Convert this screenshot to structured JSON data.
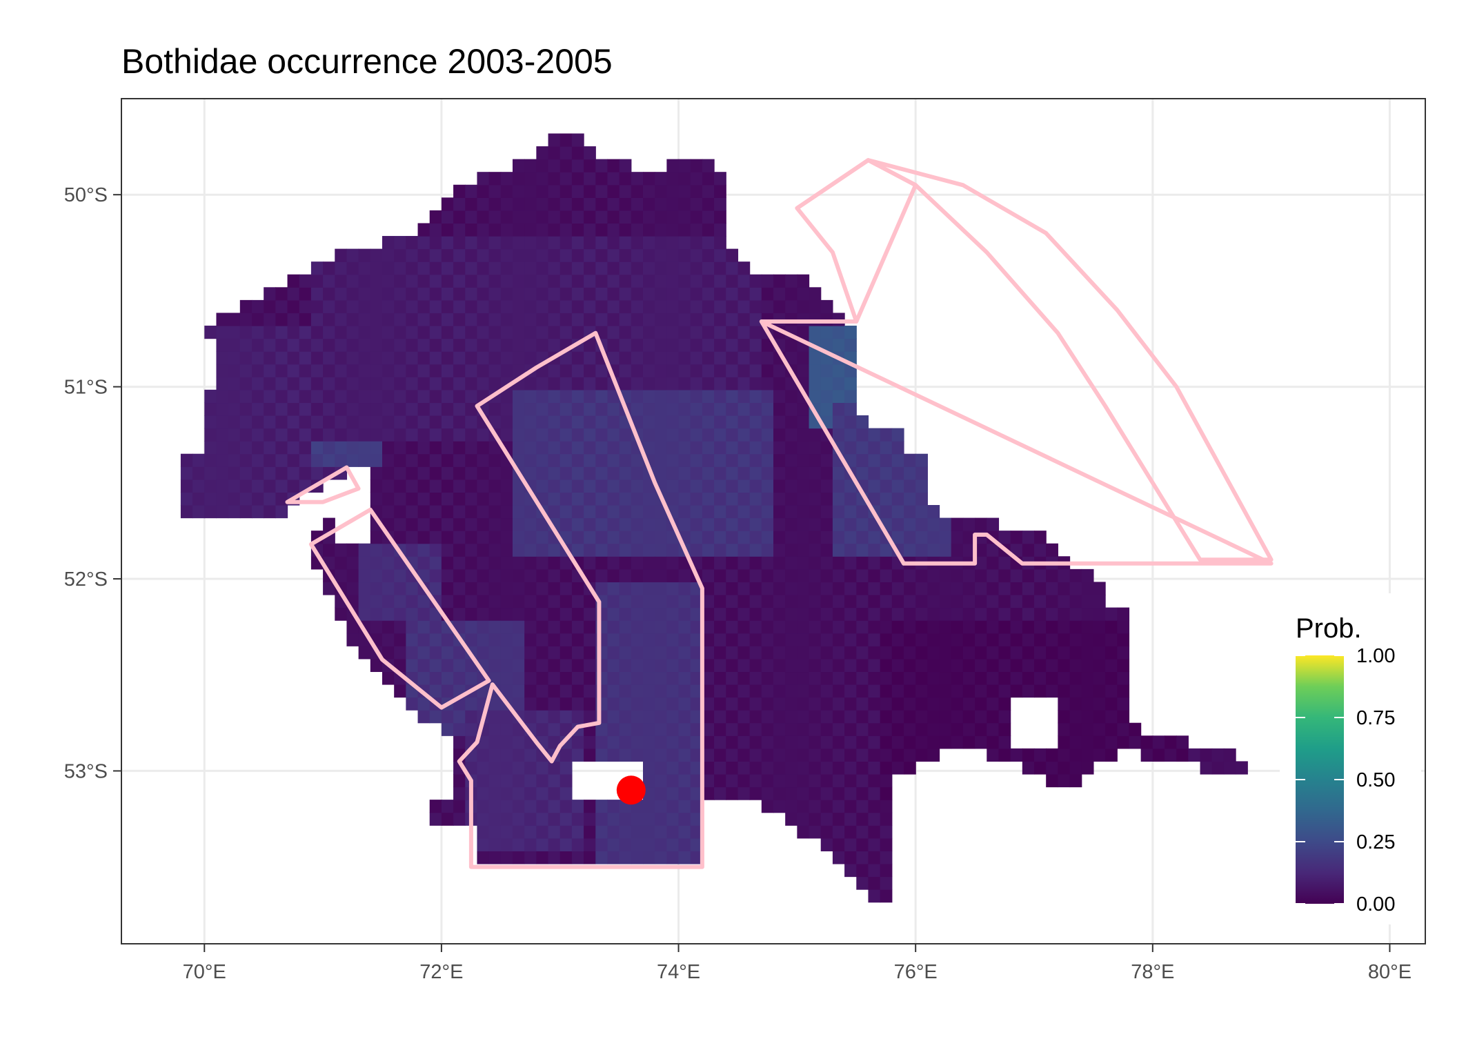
{
  "chart_data": {
    "type": "heatmap",
    "title": "Bothidae  occurrence 2003-2005",
    "xlabel": "",
    "ylabel": "",
    "xlim": [
      69.3,
      80.3
    ],
    "ylim": [
      -53.9,
      -49.5
    ],
    "x_ticks": [
      {
        "value": 70,
        "label": "70°E"
      },
      {
        "value": 72,
        "label": "72°E"
      },
      {
        "value": 74,
        "label": "74°E"
      },
      {
        "value": 76,
        "label": "76°E"
      },
      {
        "value": 78,
        "label": "78°E"
      },
      {
        "value": 80,
        "label": "80°E"
      }
    ],
    "y_ticks": [
      {
        "value": -50,
        "label": "50°S"
      },
      {
        "value": -51,
        "label": "51°S"
      },
      {
        "value": -52,
        "label": "52°S"
      },
      {
        "value": -53,
        "label": "53°S"
      }
    ],
    "grid": true,
    "colorscale": "viridis",
    "fill_range": [
      0,
      1
    ],
    "cell_size_deg": [
      0.1,
      0.0667
    ],
    "probability_regions": [
      {
        "lon": [
          69.8,
          71.4
        ],
        "lat": [
          -51.7,
          -50.7
        ],
        "prob": 0.09
      },
      {
        "lon": [
          70.9,
          71.5
        ],
        "lat": [
          -51.4,
          -51.0
        ],
        "prob": 0.2
      },
      {
        "lon": [
          70.9,
          74.7
        ],
        "lat": [
          -51.3,
          -50.2
        ],
        "prob": 0.08
      },
      {
        "lon": [
          72.9,
          73.3
        ],
        "lat": [
          -51.7,
          -51.3
        ],
        "prob": 0.16
      },
      {
        "lon": [
          72.6,
          74.8
        ],
        "lat": [
          -51.9,
          -51.0
        ],
        "prob": 0.17
      },
      {
        "lon": [
          73.3,
          74.2
        ],
        "lat": [
          -53.6,
          -52.0
        ],
        "prob": 0.16
      },
      {
        "lon": [
          75.1,
          75.6
        ],
        "lat": [
          -51.2,
          -50.7
        ],
        "prob": 0.3
      },
      {
        "lon": [
          75.3,
          76.3
        ],
        "lat": [
          -51.9,
          -51.1
        ],
        "prob": 0.18
      },
      {
        "lon": [
          71.3,
          72.0
        ],
        "lat": [
          -52.2,
          -51.8
        ],
        "prob": 0.14
      },
      {
        "lon": [
          71.7,
          72.7
        ],
        "lat": [
          -52.8,
          -52.2
        ],
        "prob": 0.16
      },
      {
        "lon": [
          72.2,
          73.2
        ],
        "lat": [
          -53.4,
          -52.7
        ],
        "prob": 0.12
      },
      {
        "lon": [
          75.7,
          78.3
        ],
        "lat": [
          -53.2,
          -52.2
        ],
        "prob": 0.01
      }
    ],
    "legend": {
      "title": "Prob.",
      "placement": "right",
      "ticks": [
        {
          "value": 0,
          "label": "0.00"
        },
        {
          "value": 0.25,
          "label": "0.25"
        },
        {
          "value": 0.5,
          "label": "0.50"
        },
        {
          "value": 0.75,
          "label": "0.75"
        },
        {
          "value": 1,
          "label": "1.00"
        }
      ]
    },
    "polygon_color": "#ffc0cb",
    "polygons": [
      {
        "name": "zone-northeast-sector",
        "points": [
          [
            75.0,
            -50.07
          ],
          [
            75.6,
            -49.82
          ],
          [
            76.0,
            -49.95
          ],
          [
            76.6,
            -50.3
          ],
          [
            77.2,
            -50.72
          ],
          [
            77.6,
            -51.1
          ],
          [
            78.0,
            -51.5
          ],
          [
            78.4,
            -51.9
          ],
          [
            79.0,
            -51.9
          ],
          [
            78.6,
            -51.45
          ],
          [
            78.2,
            -51.0
          ],
          [
            77.7,
            -50.6
          ],
          [
            77.1,
            -50.2
          ],
          [
            76.4,
            -49.95
          ],
          [
            75.6,
            -49.82
          ]
        ]
      },
      {
        "name": "zone-east-shelf",
        "points": [
          [
            74.7,
            -50.66
          ],
          [
            75.5,
            -50.66
          ],
          [
            75.3,
            -50.3
          ],
          [
            75.0,
            -50.07
          ],
          [
            75.6,
            -49.82
          ],
          [
            76.0,
            -49.95
          ],
          [
            75.5,
            -50.66
          ],
          [
            74.7,
            -50.66
          ],
          [
            75.9,
            -51.92
          ],
          [
            76.5,
            -51.92
          ],
          [
            76.5,
            -51.77
          ],
          [
            76.6,
            -51.77
          ],
          [
            76.9,
            -51.92
          ],
          [
            79.0,
            -51.92
          ]
        ]
      },
      {
        "name": "zone-central-corridor",
        "points": [
          [
            72.3,
            -51.1
          ],
          [
            72.8,
            -50.9
          ],
          [
            73.3,
            -50.72
          ],
          [
            73.8,
            -51.5
          ],
          [
            74.2,
            -52.05
          ],
          [
            74.2,
            -53.5
          ],
          [
            72.25,
            -53.5
          ],
          [
            72.25,
            -53.05
          ],
          [
            72.15,
            -52.95
          ],
          [
            72.3,
            -52.85
          ],
          [
            72.43,
            -52.55
          ],
          [
            72.8,
            -52.85
          ],
          [
            72.93,
            -52.95
          ],
          [
            73.0,
            -52.87
          ],
          [
            73.15,
            -52.77
          ],
          [
            73.33,
            -52.75
          ],
          [
            73.33,
            -52.12
          ],
          [
            72.3,
            -51.1
          ]
        ]
      },
      {
        "name": "zone-west-strip",
        "points": [
          [
            70.9,
            -51.82
          ],
          [
            71.4,
            -51.64
          ],
          [
            72.4,
            -52.53
          ],
          [
            72.0,
            -52.67
          ],
          [
            71.5,
            -52.42
          ],
          [
            70.9,
            -51.82
          ]
        ]
      },
      {
        "name": "zone-west-islet",
        "points": [
          [
            70.7,
            -51.6
          ],
          [
            71.2,
            -51.42
          ],
          [
            71.3,
            -51.53
          ],
          [
            71.0,
            -51.6
          ],
          [
            70.7,
            -51.6
          ]
        ]
      }
    ],
    "points": [
      {
        "name": "sample-site",
        "lon": 73.6,
        "lat": -53.1,
        "color": "#ff0000"
      }
    ]
  }
}
